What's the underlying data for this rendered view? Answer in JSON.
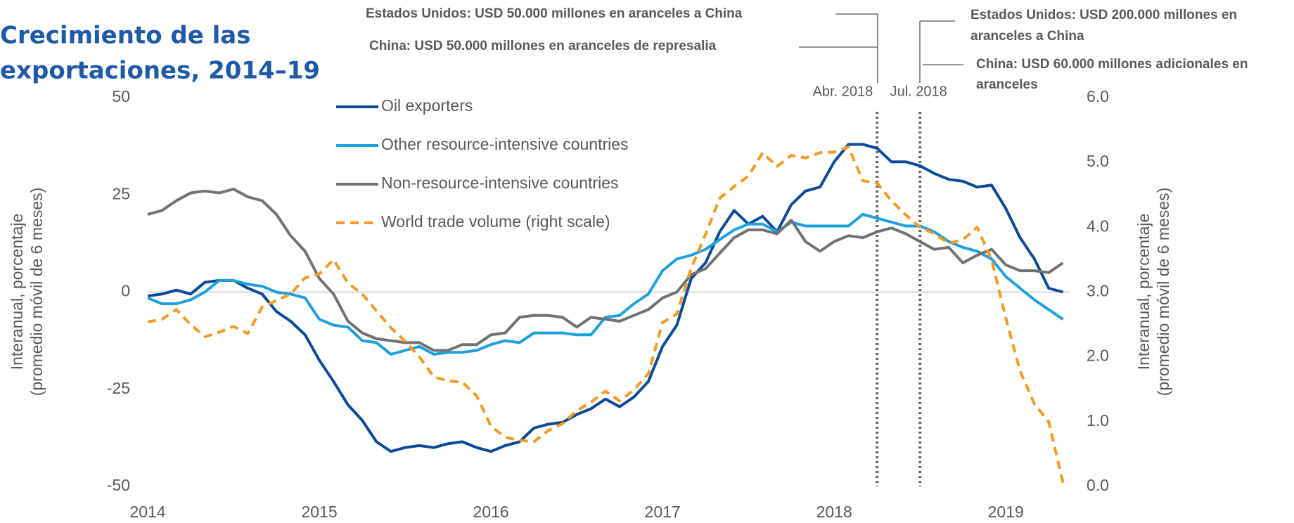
{
  "chart_data": {
    "type": "line",
    "title": [
      "Crecimiento de las",
      "exportaciones, 2014–19"
    ],
    "ylabel": [
      "Interanual, porcentaje",
      "(promedio móvil de 6 meses)"
    ],
    "y2label": [
      "Interanual, porcentaje",
      "(promedio móvil de 6 meses)"
    ],
    "annotations": [
      [
        "Estados Unidos: USD 50.000 millones en aranceles a China"
      ],
      [
        "China: USD 50.000 millones en aranceles de represalia"
      ],
      [
        "Estados Unidos: USD 200.000 millones en",
        "aranceles a China"
      ],
      [
        "China: USD 60.000 millones adicionales en",
        "aranceles"
      ]
    ],
    "vlines": [
      {
        "x": 2018.25,
        "label": "Abr. 2018"
      },
      {
        "x": 2018.5,
        "label": "Jul. 2018"
      }
    ],
    "x": [
      2014,
      2014.083,
      2014.167,
      2014.25,
      2014.333,
      2014.417,
      2014.5,
      2014.583,
      2014.667,
      2014.75,
      2014.833,
      2014.917,
      2015,
      2015.083,
      2015.167,
      2015.25,
      2015.333,
      2015.417,
      2015.5,
      2015.583,
      2015.667,
      2015.75,
      2015.833,
      2015.917,
      2016,
      2016.083,
      2016.167,
      2016.25,
      2016.333,
      2016.417,
      2016.5,
      2016.583,
      2016.667,
      2016.75,
      2016.833,
      2016.917,
      2017,
      2017.083,
      2017.167,
      2017.25,
      2017.333,
      2017.417,
      2017.5,
      2017.583,
      2017.667,
      2017.75,
      2017.833,
      2017.917,
      2018,
      2018.083,
      2018.167,
      2018.25,
      2018.333,
      2018.417,
      2018.5,
      2018.583,
      2018.667,
      2018.75,
      2018.833,
      2018.917,
      2019,
      2019.083,
      2019.167,
      2019.25,
      2019.333
    ],
    "xlim": [
      2014,
      2019.417
    ],
    "xticks": [
      2014,
      2015,
      2016,
      2017,
      2018,
      2019
    ],
    "ylim": [
      -50,
      50
    ],
    "yticks": [
      -50,
      -25,
      0,
      25,
      50
    ],
    "y2lim": [
      0,
      6
    ],
    "y2ticks": [
      {
        "value": 0,
        "label": "0.0"
      },
      {
        "value": 1,
        "label": "1.0"
      },
      {
        "value": 2,
        "label": "2.0"
      },
      {
        "value": 3,
        "label": "3.0"
      },
      {
        "value": 4,
        "label": "4.0"
      },
      {
        "value": 5,
        "label": "5.0"
      },
      {
        "value": 6,
        "label": "6.0"
      }
    ],
    "series": [
      {
        "name": "Oil exporters",
        "color": "#0b4a97",
        "values": [
          -1,
          -0.5,
          0.5,
          -0.5,
          2.5,
          3,
          3,
          1,
          -0.5,
          -5,
          -7.5,
          -11,
          -17.5,
          -23,
          -29,
          -33,
          -38.5,
          -41,
          -40,
          -39.5,
          -40,
          -39,
          -38.5,
          -40,
          -41,
          -39.5,
          -38.5,
          -35,
          -34,
          -33.5,
          -31.5,
          -30,
          -27.5,
          -29.5,
          -27,
          -23,
          -14,
          -8.5,
          3.5,
          7.5,
          15.5,
          21,
          17.5,
          19.5,
          15.5,
          22.5,
          26,
          27,
          33.5,
          38,
          38,
          37,
          33.5,
          33.5,
          32.5,
          30.5,
          29,
          28.5,
          27,
          27.5,
          21.5,
          14,
          8.5,
          1,
          0
        ]
      },
      {
        "name": "Other resource-intensive countries",
        "color": "#1ea0dc",
        "values": [
          -1.5,
          -3,
          -3,
          -2,
          0,
          3,
          3,
          2,
          1.5,
          0,
          -0.5,
          -1.5,
          -7,
          -8.5,
          -9,
          -12.5,
          -13,
          -16,
          -15,
          -14,
          -16,
          -15.5,
          -15.5,
          -15,
          -13.5,
          -12.5,
          -13,
          -10.5,
          -10.5,
          -10.5,
          -11,
          -11,
          -6.5,
          -6,
          -3,
          -0.5,
          5.5,
          8.5,
          9.5,
          11,
          13.5,
          16,
          17.5,
          17.5,
          15.5,
          18,
          17,
          17,
          17,
          17,
          20,
          19,
          18,
          17,
          17,
          15.5,
          13,
          11.5,
          10.5,
          8.5,
          4,
          1,
          -2,
          -4.5,
          -7
        ]
      },
      {
        "name": "Non-resource-intensive countries",
        "color": "#727272",
        "values": [
          20,
          21,
          23.5,
          25.5,
          26,
          25.5,
          26.5,
          24.5,
          23.5,
          20,
          14.5,
          10.5,
          3.5,
          -0.5,
          -7.5,
          -10.5,
          -12,
          -12.5,
          -13,
          -13,
          -15,
          -15,
          -13.5,
          -13.5,
          -11,
          -10.5,
          -6.5,
          -6,
          -6,
          -6.5,
          -9,
          -6.5,
          -7,
          -7.5,
          -6,
          -4.5,
          -1.5,
          0,
          4.5,
          6,
          10,
          14,
          16,
          16,
          15,
          18.5,
          13,
          10.5,
          13,
          14.5,
          14,
          15.5,
          16.5,
          15,
          13,
          11,
          11.5,
          7.5,
          9.5,
          11,
          7,
          5.5,
          5.5,
          5,
          7.5
        ]
      },
      {
        "name": "World trade volume (right scale)",
        "color": "#f59a23",
        "dashed": true,
        "axis": "y2",
        "values": [
          2.54,
          2.58,
          2.73,
          2.5,
          2.31,
          2.38,
          2.47,
          2.36,
          2.77,
          2.87,
          2.97,
          3.22,
          3.28,
          3.5,
          3.14,
          2.97,
          2.71,
          2.45,
          2.24,
          2.0,
          1.69,
          1.63,
          1.61,
          1.4,
          0.93,
          0.76,
          0.71,
          0.69,
          0.86,
          0.97,
          1.17,
          1.3,
          1.47,
          1.32,
          1.49,
          1.74,
          2.53,
          2.66,
          3.37,
          3.89,
          4.45,
          4.63,
          4.79,
          5.15,
          4.94,
          5.11,
          5.07,
          5.15,
          5.16,
          5.24,
          4.72,
          4.68,
          4.41,
          4.19,
          4.0,
          3.9,
          3.75,
          3.81,
          4.0,
          3.5,
          2.6,
          1.78,
          1.27,
          1.0,
          0.06
        ]
      }
    ]
  }
}
